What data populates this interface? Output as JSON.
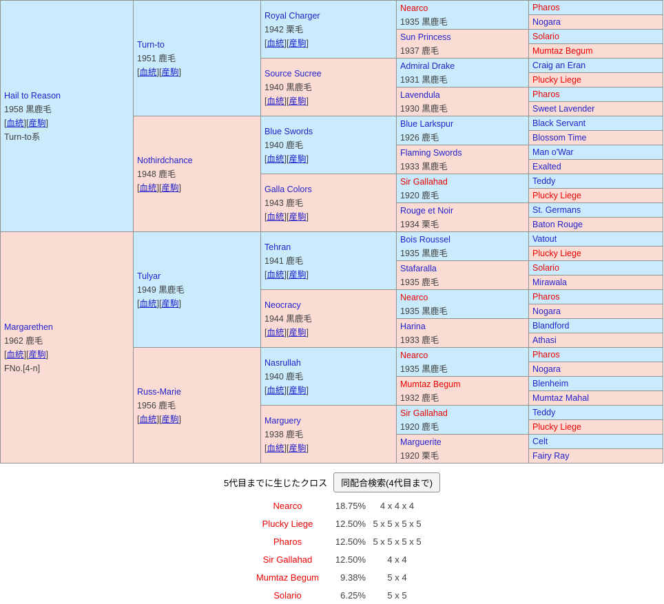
{
  "colors": {
    "male_bg": "#C9EBFB",
    "female_bg": "#FBDCD5",
    "link_blue": "#2222CC",
    "cross_red": "#EE0000",
    "meta_gray": "#404040",
    "border_gray": "#919191"
  },
  "links": {
    "open": "[",
    "close": "]",
    "bloodline": "血統",
    "offspring": "産駒"
  },
  "pedigree": {
    "gen1": [
      {
        "name": "Hail to Reason",
        "year_coat": "1958 黒鹿毛",
        "extra": "Turn-to系",
        "sex": "m",
        "red": false
      },
      {
        "name": "Margarethen",
        "year_coat": "1962 鹿毛",
        "extra": "FNo.[4-n]",
        "sex": "f",
        "red": false
      }
    ],
    "gen2": [
      {
        "name": "Turn-to",
        "year_coat": "1951 鹿毛",
        "sex": "m",
        "red": false
      },
      {
        "name": "Nothirdchance",
        "year_coat": "1948 鹿毛",
        "sex": "f",
        "red": false
      },
      {
        "name": "Tulyar",
        "year_coat": "1949 黒鹿毛",
        "sex": "m",
        "red": false
      },
      {
        "name": "Russ-Marie",
        "year_coat": "1956 鹿毛",
        "sex": "f",
        "red": false
      }
    ],
    "gen3": [
      {
        "name": "Royal Charger",
        "year_coat": "1942 栗毛",
        "sex": "m",
        "red": false
      },
      {
        "name": "Source Sucree",
        "year_coat": "1940 黒鹿毛",
        "sex": "f",
        "red": false
      },
      {
        "name": "Blue Swords",
        "year_coat": "1940 鹿毛",
        "sex": "m",
        "red": false
      },
      {
        "name": "Galla Colors",
        "year_coat": "1943 鹿毛",
        "sex": "f",
        "red": false
      },
      {
        "name": "Tehran",
        "year_coat": "1941 鹿毛",
        "sex": "m",
        "red": false
      },
      {
        "name": "Neocracy",
        "year_coat": "1944 黒鹿毛",
        "sex": "f",
        "red": false
      },
      {
        "name": "Nasrullah",
        "year_coat": "1940 鹿毛",
        "sex": "m",
        "red": false
      },
      {
        "name": "Marguery",
        "year_coat": "1938 鹿毛",
        "sex": "f",
        "red": false
      }
    ],
    "gen4": [
      {
        "name": "Nearco",
        "year_coat": "1935 黒鹿毛",
        "sex": "m",
        "red": true
      },
      {
        "name": "Sun Princess",
        "year_coat": "1937 鹿毛",
        "sex": "f",
        "red": false
      },
      {
        "name": "Admiral Drake",
        "year_coat": "1931 黒鹿毛",
        "sex": "m",
        "red": false
      },
      {
        "name": "Lavendula",
        "year_coat": "1930 黒鹿毛",
        "sex": "f",
        "red": false
      },
      {
        "name": "Blue Larkspur",
        "year_coat": "1926 鹿毛",
        "sex": "m",
        "red": false
      },
      {
        "name": "Flaming Swords",
        "year_coat": "1933 黒鹿毛",
        "sex": "f",
        "red": false
      },
      {
        "name": "Sir Gallahad",
        "year_coat": "1920 鹿毛",
        "sex": "m",
        "red": true
      },
      {
        "name": "Rouge et Noir",
        "year_coat": "1934 栗毛",
        "sex": "f",
        "red": false
      },
      {
        "name": "Bois Roussel",
        "year_coat": "1935 黒鹿毛",
        "sex": "m",
        "red": false
      },
      {
        "name": "Stafaralla",
        "year_coat": "1935 鹿毛",
        "sex": "f",
        "red": false
      },
      {
        "name": "Nearco",
        "year_coat": "1935 黒鹿毛",
        "sex": "m",
        "red": true
      },
      {
        "name": "Harina",
        "year_coat": "1933 鹿毛",
        "sex": "f",
        "red": false
      },
      {
        "name": "Nearco",
        "year_coat": "1935 黒鹿毛",
        "sex": "m",
        "red": true
      },
      {
        "name": "Mumtaz Begum",
        "year_coat": "1932 鹿毛",
        "sex": "f",
        "red": true
      },
      {
        "name": "Sir Gallahad",
        "year_coat": "1920 鹿毛",
        "sex": "m",
        "red": true
      },
      {
        "name": "Marguerite",
        "year_coat": "1920 栗毛",
        "sex": "f",
        "red": false
      }
    ],
    "gen5": [
      {
        "name": "Pharos",
        "sex": "m",
        "red": true
      },
      {
        "name": "Nogara",
        "sex": "f",
        "red": false
      },
      {
        "name": "Solario",
        "sex": "m",
        "red": true
      },
      {
        "name": "Mumtaz Begum",
        "sex": "f",
        "red": true
      },
      {
        "name": "Craig an Eran",
        "sex": "m",
        "red": false
      },
      {
        "name": "Plucky Liege",
        "sex": "f",
        "red": true
      },
      {
        "name": "Pharos",
        "sex": "m",
        "red": true
      },
      {
        "name": "Sweet Lavender",
        "sex": "f",
        "red": false
      },
      {
        "name": "Black Servant",
        "sex": "m",
        "red": false
      },
      {
        "name": "Blossom Time",
        "sex": "f",
        "red": false
      },
      {
        "name": "Man o'War",
        "sex": "m",
        "red": false
      },
      {
        "name": "Exalted",
        "sex": "f",
        "red": false
      },
      {
        "name": "Teddy",
        "sex": "m",
        "red": false
      },
      {
        "name": "Plucky Liege",
        "sex": "f",
        "red": true
      },
      {
        "name": "St. Germans",
        "sex": "m",
        "red": false
      },
      {
        "name": "Baton Rouge",
        "sex": "f",
        "red": false
      },
      {
        "name": "Vatout",
        "sex": "m",
        "red": false
      },
      {
        "name": "Plucky Liege",
        "sex": "f",
        "red": true
      },
      {
        "name": "Solario",
        "sex": "m",
        "red": true
      },
      {
        "name": "Mirawala",
        "sex": "f",
        "red": false
      },
      {
        "name": "Pharos",
        "sex": "m",
        "red": true
      },
      {
        "name": "Nogara",
        "sex": "f",
        "red": false
      },
      {
        "name": "Blandford",
        "sex": "m",
        "red": false
      },
      {
        "name": "Athasi",
        "sex": "f",
        "red": false
      },
      {
        "name": "Pharos",
        "sex": "m",
        "red": true
      },
      {
        "name": "Nogara",
        "sex": "f",
        "red": false
      },
      {
        "name": "Blenheim",
        "sex": "m",
        "red": false
      },
      {
        "name": "Mumtaz Mahal",
        "sex": "f",
        "red": false
      },
      {
        "name": "Teddy",
        "sex": "m",
        "red": false
      },
      {
        "name": "Plucky Liege",
        "sex": "f",
        "red": true
      },
      {
        "name": "Celt",
        "sex": "m",
        "red": false
      },
      {
        "name": "Fairy Ray",
        "sex": "f",
        "red": false
      }
    ]
  },
  "cross_section": {
    "label": "5代目までに生じたクロス",
    "button_label": "同配合検索(4代目まで)",
    "crosses": [
      {
        "name": "Nearco",
        "percent": "18.75%",
        "pattern": "4 x 4 x 4"
      },
      {
        "name": "Plucky Liege",
        "percent": "12.50%",
        "pattern": "5 x 5 x 5 x 5"
      },
      {
        "name": "Pharos",
        "percent": "12.50%",
        "pattern": "5 x 5 x 5 x 5"
      },
      {
        "name": "Sir Gallahad",
        "percent": "12.50%",
        "pattern": "4 x 4"
      },
      {
        "name": "Mumtaz Begum",
        "percent": "9.38%",
        "pattern": "5 x 4"
      },
      {
        "name": "Solario",
        "percent": "6.25%",
        "pattern": "5 x 5"
      }
    ]
  }
}
